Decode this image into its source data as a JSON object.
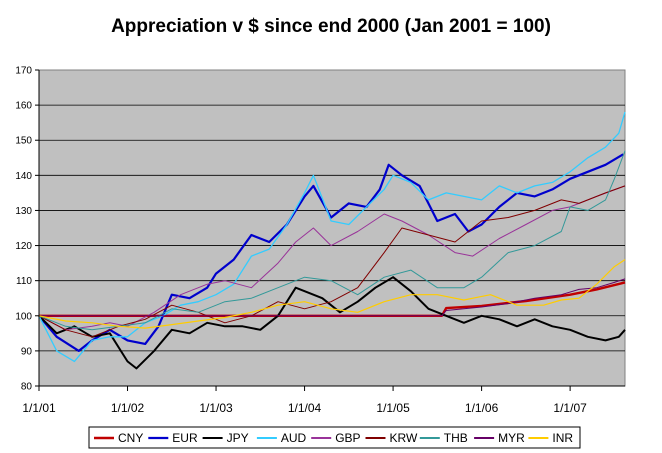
{
  "chart_data": {
    "type": "line",
    "title": "Appreciation v $ since end 2000 (Jan 2001 = 100)",
    "xlabel": "",
    "ylabel": "",
    "ylim": [
      80,
      170
    ],
    "yticks": [
      80,
      90,
      100,
      110,
      120,
      130,
      140,
      150,
      160,
      170
    ],
    "xlim": [
      2001.0,
      2007.62
    ],
    "xticks": [
      {
        "x": 2001,
        "label": "1/1/01"
      },
      {
        "x": 2002,
        "label": "1/1/02"
      },
      {
        "x": 2003,
        "label": "1/1/03"
      },
      {
        "x": 2004,
        "label": "1/1/04"
      },
      {
        "x": 2005,
        "label": "1/1/05"
      },
      {
        "x": 2006,
        "label": "1/1/06"
      },
      {
        "x": 2007,
        "label": "1/1/07"
      }
    ],
    "grid": "horizontal",
    "plot_background": "#c0c0c0",
    "legend_position": "bottom",
    "series": [
      {
        "name": "CNY",
        "color": "#c00000",
        "width": 2.4,
        "x": [
          2001.0,
          2005.55,
          2005.6,
          2006.0,
          2006.5,
          2007.0,
          2007.3,
          2007.62
        ],
        "y": [
          100,
          100,
          102.2,
          102.8,
          104.2,
          106.0,
          107.5,
          109.5
        ]
      },
      {
        "name": "EUR",
        "color": "#0000cc",
        "width": 2.2,
        "x": [
          2001.0,
          2001.2,
          2001.45,
          2001.6,
          2001.8,
          2002.0,
          2002.2,
          2002.35,
          2002.5,
          2002.7,
          2002.9,
          2003.0,
          2003.2,
          2003.4,
          2003.6,
          2003.8,
          2004.0,
          2004.1,
          2004.3,
          2004.5,
          2004.7,
          2004.85,
          2004.95,
          2005.1,
          2005.3,
          2005.5,
          2005.7,
          2005.85,
          2006.0,
          2006.2,
          2006.4,
          2006.6,
          2006.8,
          2007.0,
          2007.2,
          2007.4,
          2007.6
        ],
        "y": [
          100,
          94,
          90,
          93,
          96,
          93,
          92,
          97,
          106,
          105,
          108,
          112,
          116,
          123,
          121,
          126,
          134,
          137,
          128,
          132,
          131,
          136,
          143,
          140,
          137,
          127,
          129,
          124,
          126,
          131,
          135,
          134,
          136,
          139,
          141,
          143,
          146
        ]
      },
      {
        "name": "JPY",
        "color": "#000000",
        "width": 2.0,
        "x": [
          2001.0,
          2001.2,
          2001.4,
          2001.6,
          2001.8,
          2002.0,
          2002.1,
          2002.3,
          2002.5,
          2002.7,
          2002.9,
          2003.1,
          2003.3,
          2003.5,
          2003.7,
          2003.9,
          2004.0,
          2004.2,
          2004.4,
          2004.6,
          2004.8,
          2005.0,
          2005.2,
          2005.4,
          2005.6,
          2005.8,
          2006.0,
          2006.2,
          2006.4,
          2006.6,
          2006.8,
          2007.0,
          2007.2,
          2007.4,
          2007.55,
          2007.62
        ],
        "y": [
          100,
          95,
          97,
          94,
          95,
          87,
          85,
          90,
          96,
          95,
          98,
          97,
          97,
          96,
          100,
          108,
          107,
          105,
          101,
          104,
          108,
          111,
          107,
          102,
          100,
          98,
          100,
          99,
          97,
          99,
          97,
          96,
          94,
          93,
          94,
          96
        ]
      },
      {
        "name": "AUD",
        "color": "#33ccff",
        "width": 1.3,
        "x": [
          2001.0,
          2001.2,
          2001.4,
          2001.6,
          2001.8,
          2002.0,
          2002.2,
          2002.4,
          2002.6,
          2002.8,
          2003.0,
          2003.2,
          2003.4,
          2003.6,
          2003.8,
          2004.0,
          2004.1,
          2004.3,
          2004.5,
          2004.7,
          2004.9,
          2005.0,
          2005.2,
          2005.4,
          2005.6,
          2005.8,
          2006.0,
          2006.2,
          2006.4,
          2006.6,
          2006.8,
          2007.0,
          2007.2,
          2007.4,
          2007.55,
          2007.62
        ],
        "y": [
          100,
          90,
          87,
          93,
          94,
          94,
          98,
          100,
          103,
          104,
          106,
          109,
          117,
          119,
          126,
          135,
          140,
          127,
          126,
          131,
          136,
          140,
          138,
          133,
          135,
          134,
          133,
          137,
          135,
          137,
          138,
          141,
          145,
          148,
          152,
          158
        ]
      },
      {
        "name": "GBP",
        "color": "#993399",
        "width": 1.0,
        "x": [
          2001.0,
          2001.3,
          2001.6,
          2001.8,
          2002.0,
          2002.3,
          2002.6,
          2002.9,
          2003.1,
          2003.4,
          2003.7,
          2003.9,
          2004.1,
          2004.3,
          2004.6,
          2004.9,
          2005.1,
          2005.4,
          2005.7,
          2005.9,
          2006.2,
          2006.5,
          2006.8,
          2007.0,
          2007.3,
          2007.62
        ],
        "y": [
          100,
          96,
          97,
          98,
          97,
          101,
          106,
          109,
          110,
          108,
          115,
          121,
          125,
          120,
          124,
          129,
          127,
          123,
          118,
          117,
          122,
          126,
          130,
          131,
          134,
          137
        ]
      },
      {
        "name": "KRW",
        "color": "#800000",
        "width": 1.0,
        "x": [
          2001.0,
          2001.3,
          2001.6,
          2001.9,
          2002.2,
          2002.5,
          2002.8,
          2003.1,
          2003.4,
          2003.7,
          2004.0,
          2004.3,
          2004.6,
          2004.9,
          2005.1,
          2005.4,
          2005.7,
          2006.0,
          2006.3,
          2006.6,
          2006.9,
          2007.1,
          2007.4,
          2007.62
        ],
        "y": [
          100,
          96,
          94,
          97,
          99,
          103,
          101,
          98,
          100,
          104,
          102,
          104,
          108,
          118,
          125,
          123,
          121,
          127,
          128,
          130,
          133,
          132,
          135,
          137
        ]
      },
      {
        "name": "THB",
        "color": "#339999",
        "width": 1.0,
        "x": [
          2001.0,
          2001.3,
          2001.6,
          2001.9,
          2002.2,
          2002.5,
          2002.8,
          2003.1,
          2003.4,
          2003.7,
          2004.0,
          2004.3,
          2004.6,
          2004.9,
          2005.2,
          2005.5,
          2005.8,
          2006.0,
          2006.3,
          2006.6,
          2006.9,
          2007.0,
          2007.2,
          2007.4,
          2007.5,
          2007.62
        ],
        "y": [
          100,
          97,
          96,
          97,
          98,
          102,
          101,
          104,
          105,
          108,
          111,
          110,
          106,
          111,
          113,
          108,
          108,
          111,
          118,
          120,
          124,
          131,
          130,
          133,
          139,
          147
        ]
      },
      {
        "name": "MYR",
        "color": "#660066",
        "width": 1.0,
        "x": [
          2001.0,
          2005.55,
          2005.6,
          2006.0,
          2006.3,
          2006.6,
          2006.9,
          2007.1,
          2007.3,
          2007.5,
          2007.62
        ],
        "y": [
          100,
          100,
          101.5,
          102.5,
          103.5,
          105,
          106,
          107.5,
          108,
          109.5,
          110.5
        ]
      },
      {
        "name": "INR",
        "color": "#ffcc00",
        "width": 1.2,
        "x": [
          2001.0,
          2001.3,
          2001.6,
          2001.9,
          2002.2,
          2002.5,
          2002.8,
          2003.1,
          2003.4,
          2003.7,
          2004.0,
          2004.3,
          2004.6,
          2004.9,
          2005.2,
          2005.5,
          2005.8,
          2006.1,
          2006.4,
          2006.7,
          2006.9,
          2007.1,
          2007.3,
          2007.5,
          2007.62
        ],
        "y": [
          100,
          98.5,
          98,
          97,
          96.5,
          97.5,
          98.5,
          99.5,
          101,
          103,
          104,
          102,
          101,
          104,
          106,
          106,
          104.5,
          106,
          103,
          103,
          104.5,
          105,
          109,
          114,
          116
        ]
      }
    ]
  }
}
